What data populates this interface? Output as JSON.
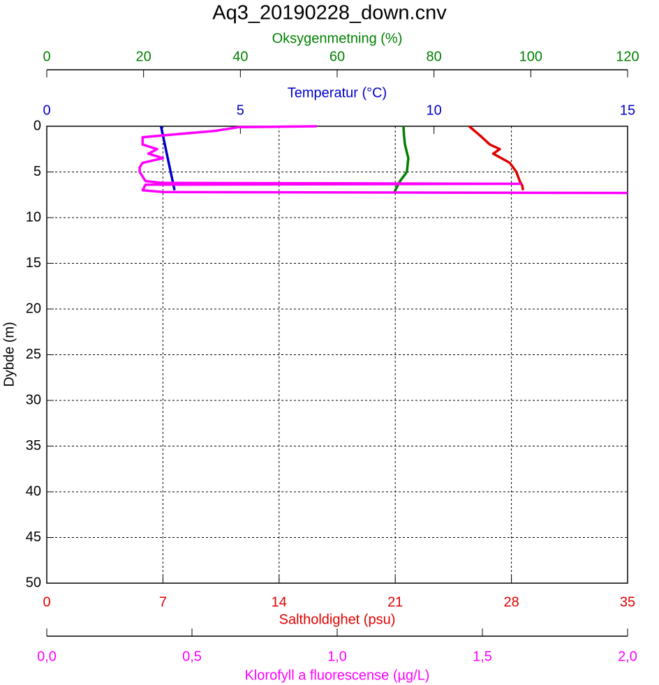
{
  "chart_data": {
    "type": "profile",
    "title": "Aq3_20190228_down.cnv",
    "y_label": "Dybde (m)",
    "ylim": [
      0,
      50
    ],
    "yticks": [
      0,
      5,
      10,
      15,
      20,
      25,
      30,
      35,
      40,
      45,
      50
    ],
    "y_reversed": true,
    "grid": true,
    "x_axes": [
      {
        "label": "Oksygenmetning (%)",
        "color": "#008000",
        "position": "top",
        "xlim": [
          0,
          120
        ],
        "xticks": [
          0,
          20,
          40,
          60,
          80,
          100,
          120
        ]
      },
      {
        "label": "Temperatur (°C)",
        "color": "#0000cc",
        "position": "top",
        "xlim": [
          0,
          15
        ],
        "xticks": [
          0,
          5,
          10,
          15
        ]
      },
      {
        "label": "Saltholdighet (psu)",
        "color": "#e00000",
        "position": "bottom",
        "xlim": [
          0,
          35
        ],
        "xticks": [
          0,
          7,
          14,
          21,
          28,
          35
        ],
        "grid": true
      },
      {
        "label": "Klorofyll a fluorescense (µg/L)",
        "color": "#ff00ff",
        "position": "bottom",
        "xlim": [
          0,
          2
        ],
        "xticks": [
          {
            "value": 0,
            "label": "0,0"
          },
          {
            "value": 0.5,
            "label": "0,5"
          },
          {
            "value": 1,
            "label": "1,0"
          },
          {
            "value": 1.5,
            "label": "1,5"
          },
          {
            "value": 2,
            "label": "2,0"
          }
        ]
      }
    ],
    "series": [
      {
        "axis": 1,
        "color": "#0000cc",
        "values": [
          2.95,
          3.0,
          3.05,
          3.1,
          3.15,
          3.2,
          3.25,
          3.3
        ],
        "depth": [
          0,
          1,
          2,
          3,
          4,
          5,
          6,
          7
        ]
      },
      {
        "axis": 0,
        "color": "#008000",
        "values": [
          73.7,
          73.8,
          74,
          74.7,
          74.4,
          73,
          72,
          71.8
        ],
        "depth": [
          0,
          1,
          2,
          3.5,
          5,
          6,
          7,
          7.3
        ]
      },
      {
        "axis": 2,
        "color": "#e00000",
        "values": [
          25.45,
          26.1,
          26.7,
          27.3,
          26.9,
          27.9,
          28.3,
          28.5,
          28.65,
          28.7
        ],
        "depth": [
          0,
          1,
          2,
          2.5,
          3,
          4,
          5,
          6,
          6.5,
          7
        ]
      },
      {
        "axis": 3,
        "color": "#ff00ff",
        "values": [
          0.93,
          0.66,
          0.58,
          0.4,
          0.33,
          0.33,
          0.38,
          0.35,
          0.4,
          0.33,
          0.32,
          0.32,
          0.33,
          0.34,
          0.4,
          1.63,
          0.34,
          0.33,
          0.4,
          2.0
        ],
        "depth": [
          0,
          0.1,
          0.5,
          1,
          1.2,
          2,
          2.5,
          3,
          3.5,
          4,
          4.5,
          5,
          5.5,
          6,
          6.2,
          6.3,
          6.4,
          7,
          7.2,
          7.3
        ]
      }
    ]
  }
}
